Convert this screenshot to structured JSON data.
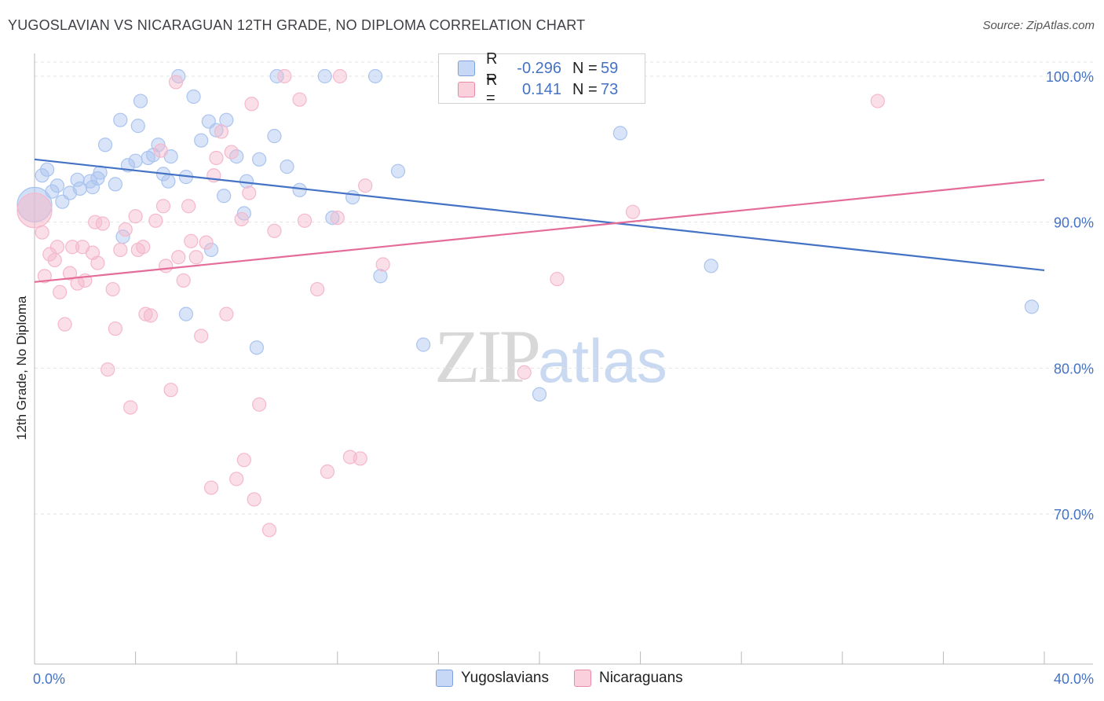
{
  "title": "YUGOSLAVIAN VS NICARAGUAN 12TH GRADE, NO DIPLOMA CORRELATION CHART",
  "source": "Source: ZipAtlas.com",
  "watermark": {
    "zip": "ZIP",
    "atlas": "atlas"
  },
  "legend": {
    "rows": [
      {
        "r_label": "R =",
        "r_value": "-0.296",
        "n_label": "N =",
        "n_value": "59",
        "color": "#aac4ef"
      },
      {
        "r_label": "R =",
        "r_value": "0.141",
        "n_label": "N =",
        "n_value": "73",
        "color": "#f5b8cb"
      }
    ]
  },
  "bottom_legend": [
    {
      "label": "Yugoslavians",
      "color": "#aac4ef"
    },
    {
      "label": "Nicaraguans",
      "color": "#f5b8cb"
    }
  ],
  "chart_data": {
    "type": "scatter",
    "title": "YUGOSLAVIAN VS NICARAGUAN 12TH GRADE, NO DIPLOMA CORRELATION CHART",
    "xlabel": "",
    "ylabel": "12th Grade, No Diploma",
    "xlim": [
      0,
      40
    ],
    "ylim": [
      60,
      102
    ],
    "x_tick_labels": [
      "0.0%",
      "40.0%"
    ],
    "y_ticks": [
      70,
      80,
      90,
      100
    ],
    "y_tick_labels": [
      "70.0%",
      "80.0%",
      "90.0%",
      "100.0%"
    ],
    "grid": true,
    "series": [
      {
        "name": "Yugoslavians",
        "color": "#4472c4",
        "fill": "#aac4ef",
        "trend": {
          "x": [
            0,
            40
          ],
          "y": [
            94.3,
            86.7
          ]
        },
        "points": [
          [
            0.0,
            91.2
          ],
          [
            0.3,
            93.2
          ],
          [
            0.5,
            93.6
          ],
          [
            0.7,
            92.1
          ],
          [
            0.9,
            92.5
          ],
          [
            1.1,
            91.4
          ],
          [
            1.4,
            92.0
          ],
          [
            1.7,
            92.9
          ],
          [
            1.8,
            92.3
          ],
          [
            2.2,
            92.8
          ],
          [
            2.3,
            92.4
          ],
          [
            2.5,
            93.0
          ],
          [
            2.6,
            93.4
          ],
          [
            2.8,
            95.3
          ],
          [
            3.2,
            92.6
          ],
          [
            3.4,
            97.0
          ],
          [
            3.5,
            89.0
          ],
          [
            3.7,
            93.9
          ],
          [
            4.0,
            94.2
          ],
          [
            4.1,
            96.6
          ],
          [
            4.2,
            98.3
          ],
          [
            4.5,
            94.4
          ],
          [
            4.7,
            94.6
          ],
          [
            4.9,
            95.3
          ],
          [
            5.1,
            93.3
          ],
          [
            5.3,
            92.8
          ],
          [
            5.4,
            94.5
          ],
          [
            5.7,
            100.0
          ],
          [
            6.0,
            93.1
          ],
          [
            6.0,
            83.7
          ],
          [
            6.3,
            98.6
          ],
          [
            6.6,
            95.6
          ],
          [
            6.9,
            96.9
          ],
          [
            7.0,
            88.1
          ],
          [
            7.2,
            96.3
          ],
          [
            7.5,
            91.8
          ],
          [
            7.6,
            97.0
          ],
          [
            8.0,
            94.5
          ],
          [
            8.3,
            90.6
          ],
          [
            8.4,
            92.8
          ],
          [
            8.8,
            81.4
          ],
          [
            8.9,
            94.3
          ],
          [
            9.5,
            95.9
          ],
          [
            9.6,
            100.0
          ],
          [
            10.0,
            93.8
          ],
          [
            10.5,
            92.2
          ],
          [
            11.5,
            100.0
          ],
          [
            11.8,
            90.3
          ],
          [
            12.6,
            91.7
          ],
          [
            13.5,
            100.0
          ],
          [
            13.7,
            86.3
          ],
          [
            14.4,
            93.5
          ],
          [
            15.4,
            81.6
          ],
          [
            20.0,
            78.2
          ],
          [
            23.2,
            96.1
          ],
          [
            26.8,
            87.0
          ],
          [
            39.5,
            84.2
          ]
        ]
      },
      {
        "name": "Nicaraguans",
        "color": "#e46c98",
        "fill": "#f5b8cb",
        "trend": {
          "x": [
            0,
            40
          ],
          "y": [
            85.9,
            92.9
          ]
        },
        "points": [
          [
            0.0,
            90.8
          ],
          [
            0.3,
            89.3
          ],
          [
            0.4,
            86.3
          ],
          [
            0.6,
            87.8
          ],
          [
            0.8,
            87.4
          ],
          [
            0.9,
            88.3
          ],
          [
            1.0,
            85.2
          ],
          [
            1.2,
            83.0
          ],
          [
            1.4,
            86.5
          ],
          [
            1.5,
            88.3
          ],
          [
            1.7,
            85.8
          ],
          [
            1.9,
            88.3
          ],
          [
            2.0,
            86.0
          ],
          [
            2.3,
            87.9
          ],
          [
            2.4,
            90.0
          ],
          [
            2.5,
            87.2
          ],
          [
            2.7,
            89.9
          ],
          [
            2.9,
            79.9
          ],
          [
            3.1,
            85.4
          ],
          [
            3.2,
            82.7
          ],
          [
            3.4,
            88.1
          ],
          [
            3.6,
            89.5
          ],
          [
            3.8,
            77.3
          ],
          [
            4.0,
            90.4
          ],
          [
            4.1,
            88.1
          ],
          [
            4.3,
            88.3
          ],
          [
            4.4,
            83.7
          ],
          [
            4.6,
            83.6
          ],
          [
            4.8,
            90.1
          ],
          [
            5.0,
            94.9
          ],
          [
            5.1,
            91.1
          ],
          [
            5.2,
            87.0
          ],
          [
            5.4,
            78.5
          ],
          [
            5.6,
            99.6
          ],
          [
            5.7,
            87.6
          ],
          [
            5.9,
            86.0
          ],
          [
            6.1,
            91.1
          ],
          [
            6.2,
            88.7
          ],
          [
            6.4,
            87.6
          ],
          [
            6.6,
            82.2
          ],
          [
            6.8,
            88.6
          ],
          [
            7.0,
            71.8
          ],
          [
            7.1,
            93.2
          ],
          [
            7.2,
            94.4
          ],
          [
            7.4,
            96.2
          ],
          [
            7.6,
            83.7
          ],
          [
            7.8,
            94.8
          ],
          [
            8.0,
            72.4
          ],
          [
            8.2,
            90.2
          ],
          [
            8.3,
            73.7
          ],
          [
            8.5,
            92.0
          ],
          [
            8.6,
            98.1
          ],
          [
            8.7,
            71.0
          ],
          [
            8.9,
            77.5
          ],
          [
            9.3,
            68.9
          ],
          [
            9.5,
            89.4
          ],
          [
            9.9,
            100.0
          ],
          [
            10.5,
            98.4
          ],
          [
            10.7,
            90.1
          ],
          [
            11.2,
            85.4
          ],
          [
            11.6,
            72.9
          ],
          [
            12.0,
            90.3
          ],
          [
            12.1,
            100.0
          ],
          [
            12.5,
            73.9
          ],
          [
            12.9,
            73.8
          ],
          [
            13.1,
            92.5
          ],
          [
            13.8,
            87.1
          ],
          [
            19.4,
            79.7
          ],
          [
            20.7,
            86.1
          ],
          [
            21.6,
            100.0
          ],
          [
            23.7,
            90.7
          ],
          [
            33.4,
            98.3
          ]
        ]
      }
    ]
  }
}
